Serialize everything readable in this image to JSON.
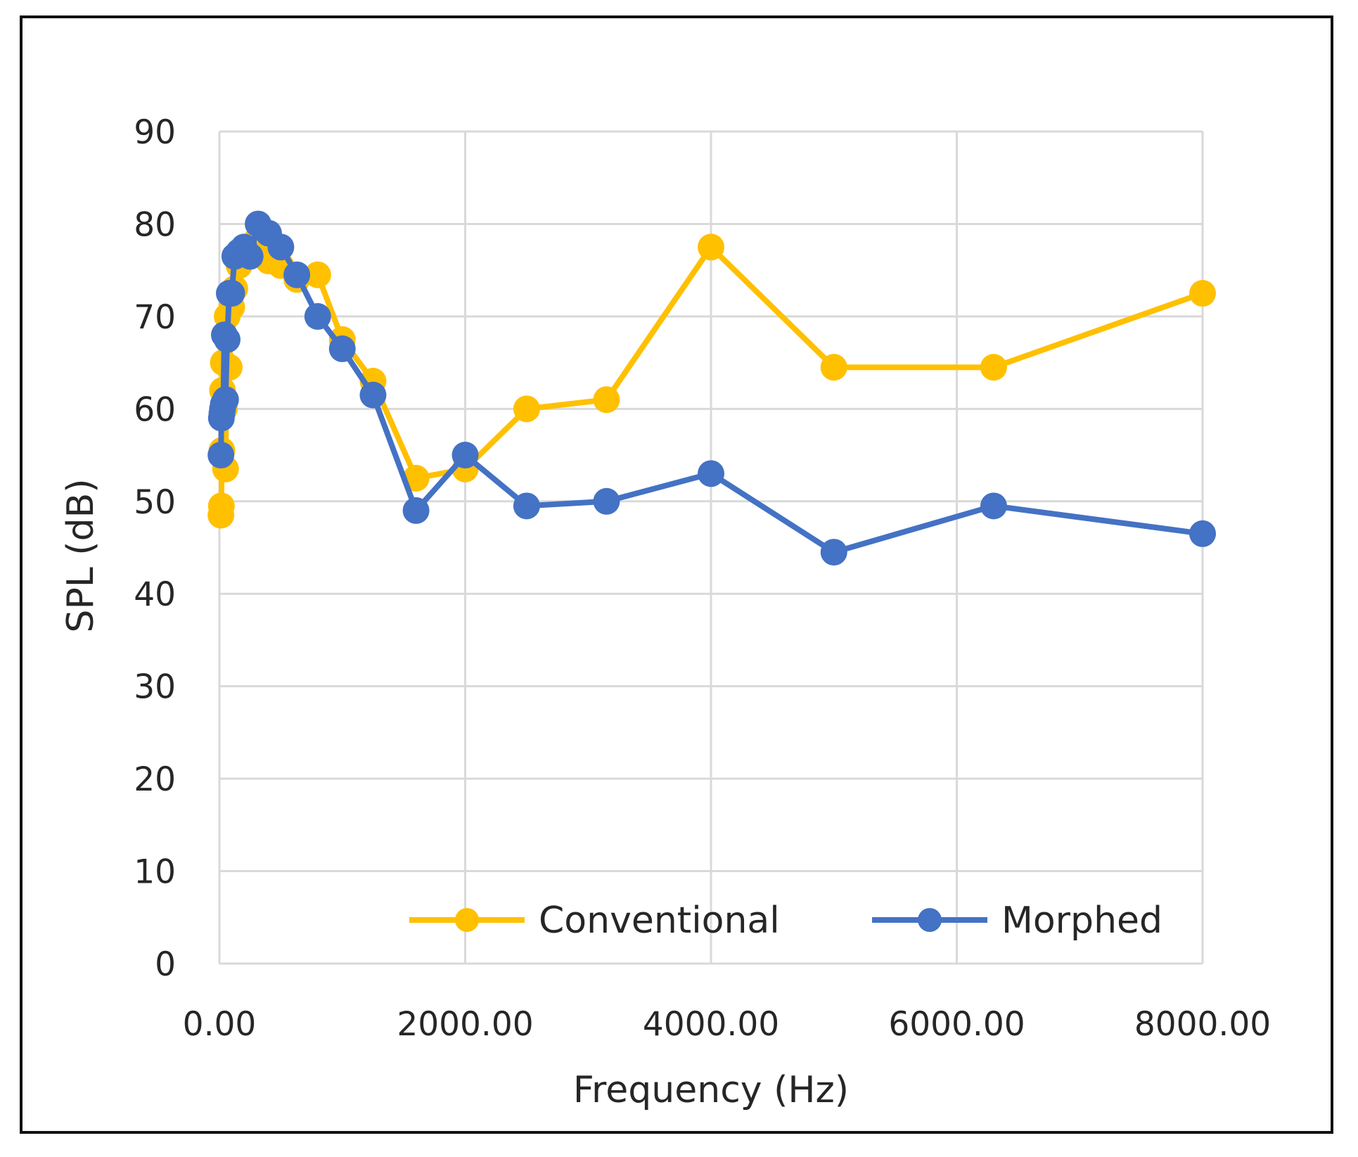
{
  "chart_data": {
    "type": "line",
    "title": "",
    "xlabel": "Frequency (Hz)",
    "ylabel": "SPL (dB)",
    "xlim": [
      0,
      8000
    ],
    "ylim": [
      0,
      90
    ],
    "x_ticks": [
      "0.00",
      "2000.00",
      "4000.00",
      "6000.00",
      "8000.00"
    ],
    "y_ticks": [
      "0",
      "10",
      "20",
      "30",
      "40",
      "50",
      "60",
      "70",
      "80",
      "90"
    ],
    "x_tick_values": [
      0,
      2000,
      4000,
      6000,
      8000
    ],
    "y_tick_values": [
      0,
      10,
      20,
      30,
      40,
      50,
      60,
      70,
      80,
      90
    ],
    "grid": true,
    "legend_position": "bottom-right",
    "series": [
      {
        "name": "Conventional",
        "color": "#FFC000",
        "x": [
          12.5,
          16,
          20,
          25,
          31.5,
          40,
          50,
          63,
          80,
          100,
          125,
          160,
          200,
          250,
          315,
          400,
          500,
          630,
          800,
          1000,
          1250,
          1600,
          2000,
          2500,
          3150,
          4000,
          5000,
          6300,
          8000
        ],
        "y": [
          48.5,
          49.5,
          55.5,
          62,
          65,
          60,
          53.5,
          70,
          64.5,
          71,
          73,
          75.5,
          76.5,
          77.5,
          78.5,
          76,
          75.5,
          74,
          74.5,
          67.5,
          63,
          52.5,
          53.5,
          60,
          61,
          77.5,
          64.5,
          64.5,
          72.5
        ]
      },
      {
        "name": "Morphed",
        "color": "#4472C4",
        "x": [
          12.5,
          16,
          20,
          25,
          31.5,
          40,
          50,
          63,
          80,
          100,
          125,
          160,
          200,
          250,
          315,
          400,
          500,
          630,
          800,
          1000,
          1250,
          1600,
          2000,
          2500,
          3150,
          4000,
          5000,
          6300,
          8000
        ],
        "y": [
          55,
          59,
          59.5,
          60,
          60.5,
          68,
          61,
          67.5,
          72.5,
          72.5,
          76.5,
          77,
          77.5,
          76.5,
          80,
          79,
          77.5,
          74.5,
          70,
          66.5,
          61.5,
          49,
          55,
          49.5,
          50,
          53,
          44.5,
          49.5,
          46.5
        ]
      }
    ]
  }
}
